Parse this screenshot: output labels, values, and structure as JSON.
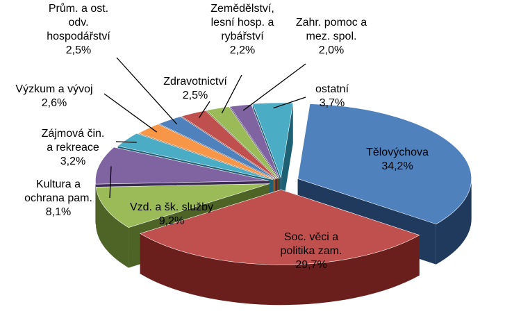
{
  "chart_data": {
    "type": "pie",
    "style": "3d-exploded",
    "decimal_separator": ",",
    "categories": [
      "Tělovýchova",
      "Soc. věci a politika zam.",
      "Vzd. a šk. služby",
      "Kultura a ochrana pam.",
      "Zájmová čin. a rekreace",
      "Výzkum a vývoj",
      "Prům. a ost. odv. hospodářství",
      "Zdravotnictví",
      "Zemědělství, lesní hosp. a rybářství",
      "Zahr. pomoc a mez. spol.",
      "ostatní"
    ],
    "values": [
      34.2,
      29.7,
      9.2,
      8.1,
      3.2,
      2.6,
      2.5,
      2.5,
      2.2,
      2.0,
      3.7
    ],
    "value_labels": [
      "34,2%",
      "29,7%",
      "9,2%",
      "8,1%",
      "3,2%",
      "2,6%",
      "2,5%",
      "2,5%",
      "2,2%",
      "2,0%",
      "3,7%"
    ],
    "label_lines": [
      [
        "Tělovýchova"
      ],
      [
        "Soc. věci a",
        "politika zam."
      ],
      [
        "Vzd. a šk. služby"
      ],
      [
        "Kultura a",
        "ochrana pam."
      ],
      [
        "Zájmová čin.",
        "a rekreace"
      ],
      [
        "Výzkum a vývoj"
      ],
      [
        "Prům. a ost.",
        "odv.",
        "hospodářství"
      ],
      [
        "Zdravotnictví"
      ],
      [
        "Zemědělství,",
        "lesní hosp. a",
        "rybářství"
      ],
      [
        "Zahr. pomoc a",
        "mez. spol."
      ],
      [
        "ostatní"
      ]
    ],
    "colors": [
      "#4F81BD",
      "#C0504D",
      "#9BBB59",
      "#8064A2",
      "#4BACC6",
      "#F79646",
      "#4F81BD",
      "#C0504D",
      "#9BBB59",
      "#8064A2",
      "#4BACC6"
    ],
    "side_colors": [
      "#1F3A5C",
      "#6B1F1D",
      "#4E6326",
      "#3C2C55",
      "#1F6174",
      "#9A531A",
      "#1F3A5C",
      "#6B1F1D",
      "#4E6326",
      "#3C2C55",
      "#1F6174"
    ],
    "legend": "none"
  }
}
